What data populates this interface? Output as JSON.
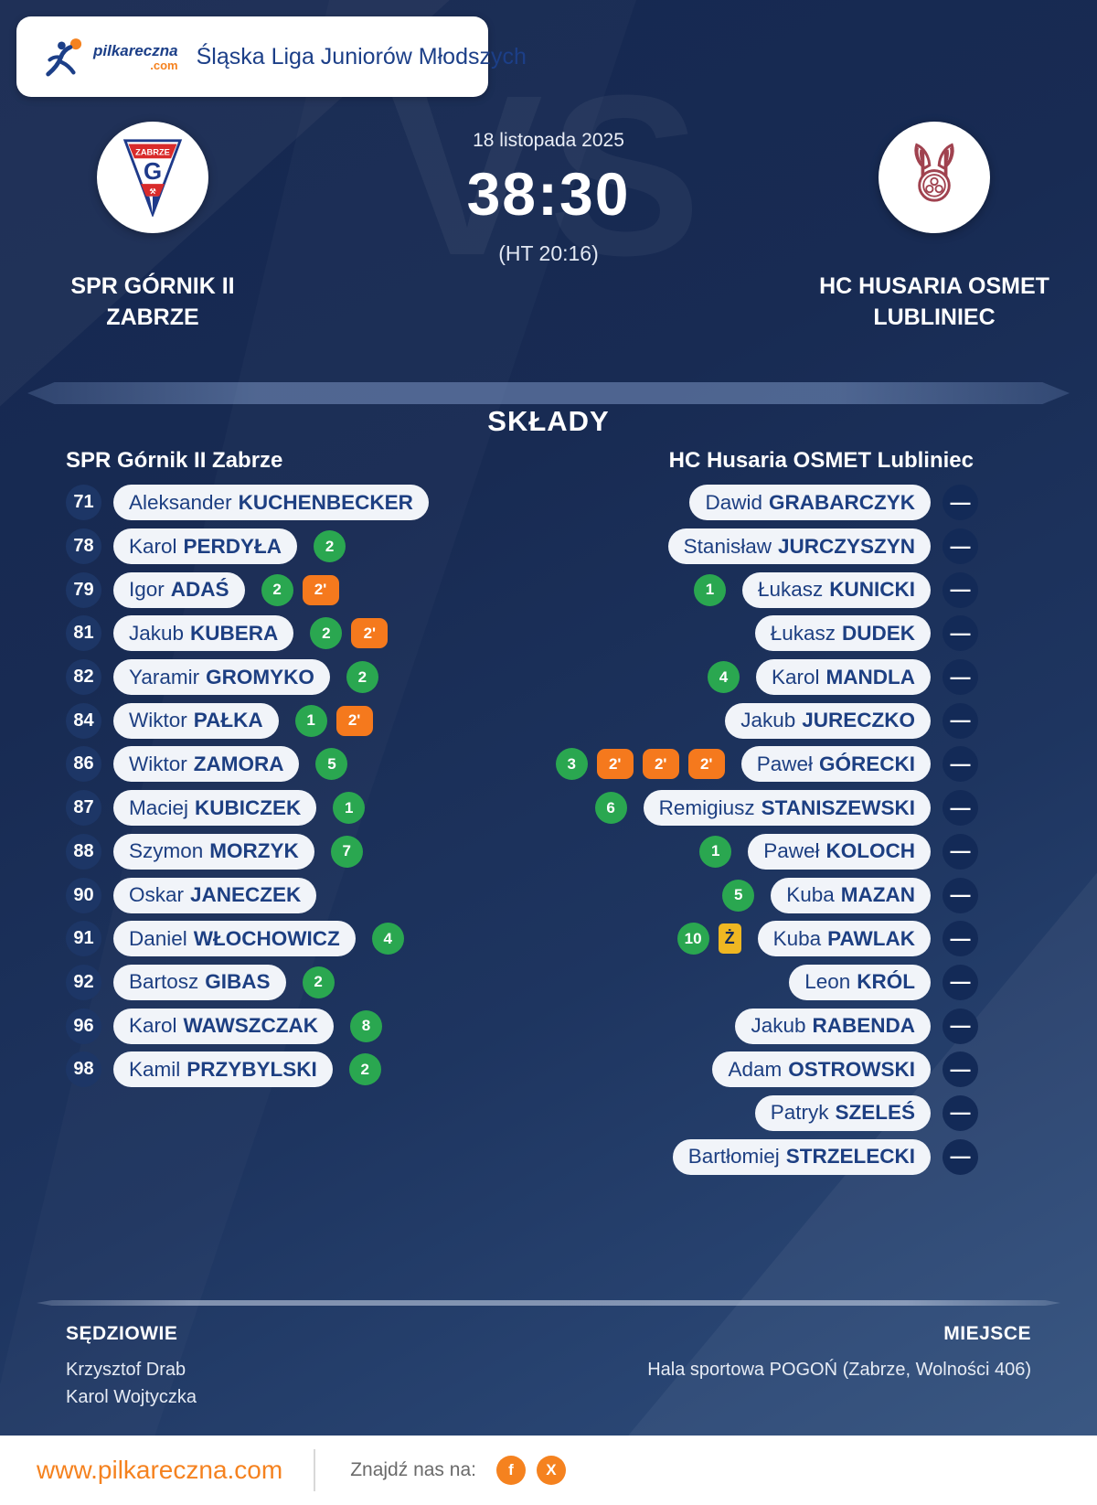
{
  "header": {
    "logo_word": "pilkareczna",
    "logo_tld": ".com",
    "league_title": "Śląska Liga Juniorów Młodszych"
  },
  "match": {
    "vs": "VS",
    "date": "18 listopada 2025",
    "score": "38:30",
    "halftime": "(HT 20:16)",
    "home": {
      "name_line1": "SPR GÓRNIK II",
      "name_line2": "ZABRZE"
    },
    "away": {
      "name_line1": "HC HUSARIA OSMET",
      "name_line2": "LUBLINIEC"
    }
  },
  "badges": {
    "two_min_label": "2'",
    "yellow_label": "Ż",
    "no_number": "—"
  },
  "lineups": {
    "title": "SKŁADY",
    "home": {
      "team_label": "SPR Górnik II Zabrze",
      "players": [
        {
          "number": "71",
          "first": "Aleksander",
          "last": "KUCHENBECKER",
          "goals": null,
          "susp_2min": 0,
          "yellow": false
        },
        {
          "number": "78",
          "first": "Karol",
          "last": "PERDYŁA",
          "goals": 2,
          "susp_2min": 0,
          "yellow": false
        },
        {
          "number": "79",
          "first": "Igor",
          "last": "ADAŚ",
          "goals": 2,
          "susp_2min": 1,
          "yellow": false
        },
        {
          "number": "81",
          "first": "Jakub",
          "last": "KUBERA",
          "goals": 2,
          "susp_2min": 1,
          "yellow": false
        },
        {
          "number": "82",
          "first": "Yaramir",
          "last": "GROMYKO",
          "goals": 2,
          "susp_2min": 0,
          "yellow": false
        },
        {
          "number": "84",
          "first": "Wiktor",
          "last": "PAŁKA",
          "goals": 1,
          "susp_2min": 1,
          "yellow": false
        },
        {
          "number": "86",
          "first": "Wiktor",
          "last": "ZAMORA",
          "goals": 5,
          "susp_2min": 0,
          "yellow": false
        },
        {
          "number": "87",
          "first": "Maciej",
          "last": "KUBICZEK",
          "goals": 1,
          "susp_2min": 0,
          "yellow": false
        },
        {
          "number": "88",
          "first": "Szymon",
          "last": "MORZYK",
          "goals": 7,
          "susp_2min": 0,
          "yellow": false
        },
        {
          "number": "90",
          "first": "Oskar",
          "last": "JANECZEK",
          "goals": null,
          "susp_2min": 0,
          "yellow": false
        },
        {
          "number": "91",
          "first": "Daniel",
          "last": "WŁOCHOWICZ",
          "goals": 4,
          "susp_2min": 0,
          "yellow": false
        },
        {
          "number": "92",
          "first": "Bartosz",
          "last": "GIBAS",
          "goals": 2,
          "susp_2min": 0,
          "yellow": false
        },
        {
          "number": "96",
          "first": "Karol",
          "last": "WAWSZCZAK",
          "goals": 8,
          "susp_2min": 0,
          "yellow": false
        },
        {
          "number": "98",
          "first": "Kamil",
          "last": "PRZYBYLSKI",
          "goals": 2,
          "susp_2min": 0,
          "yellow": false
        }
      ]
    },
    "away": {
      "team_label": "HC Husaria OSMET Lubliniec",
      "players": [
        {
          "number": null,
          "first": "Dawid",
          "last": "GRABARCZYK",
          "goals": null,
          "susp_2min": 0,
          "yellow": false
        },
        {
          "number": null,
          "first": "Stanisław",
          "last": "JURCZYSZYN",
          "goals": null,
          "susp_2min": 0,
          "yellow": false
        },
        {
          "number": null,
          "first": "Łukasz",
          "last": "KUNICKI",
          "goals": 1,
          "susp_2min": 0,
          "yellow": false
        },
        {
          "number": null,
          "first": "Łukasz",
          "last": "DUDEK",
          "goals": null,
          "susp_2min": 0,
          "yellow": false
        },
        {
          "number": null,
          "first": "Karol",
          "last": "MANDLA",
          "goals": 4,
          "susp_2min": 0,
          "yellow": false
        },
        {
          "number": null,
          "first": "Jakub",
          "last": "JURECZKO",
          "goals": null,
          "susp_2min": 0,
          "yellow": false
        },
        {
          "number": null,
          "first": "Paweł",
          "last": "GÓRECKI",
          "goals": 3,
          "susp_2min": 3,
          "yellow": false
        },
        {
          "number": null,
          "first": "Remigiusz",
          "last": "STANISZEWSKI",
          "goals": 6,
          "susp_2min": 0,
          "yellow": false
        },
        {
          "number": null,
          "first": "Paweł",
          "last": "KOLOCH",
          "goals": 1,
          "susp_2min": 0,
          "yellow": false
        },
        {
          "number": null,
          "first": "Kuba",
          "last": "MAZAN",
          "goals": 5,
          "susp_2min": 0,
          "yellow": false
        },
        {
          "number": null,
          "first": "Kuba",
          "last": "PAWLAK",
          "goals": 10,
          "susp_2min": 0,
          "yellow": true
        },
        {
          "number": null,
          "first": "Leon",
          "last": "KRÓL",
          "goals": null,
          "susp_2min": 0,
          "yellow": false
        },
        {
          "number": null,
          "first": "Jakub",
          "last": "RABENDA",
          "goals": null,
          "susp_2min": 0,
          "yellow": false
        },
        {
          "number": null,
          "first": "Adam",
          "last": "OSTROWSKI",
          "goals": null,
          "susp_2min": 0,
          "yellow": false
        },
        {
          "number": null,
          "first": "Patryk",
          "last": "SZELEŚ",
          "goals": null,
          "susp_2min": 0,
          "yellow": false
        },
        {
          "number": null,
          "first": "Bartłomiej",
          "last": "STRZELECKI",
          "goals": null,
          "susp_2min": 0,
          "yellow": false
        }
      ]
    }
  },
  "officials": {
    "referees_label": "SĘDZIOWIE",
    "referees": [
      "Krzysztof Drab",
      "Karol Wojtyczka"
    ],
    "venue_label": "MIEJSCE",
    "venue": "Hala sportowa POGOŃ (Zabrze, Wolności 406)"
  },
  "footer": {
    "site": "www.pilkareczna.com",
    "find_us_label": "Znajdź nas na:",
    "facebook_glyph": "f",
    "x_glyph": "X"
  },
  "colors": {
    "background_navy": "#17294f",
    "pill_bg": "#f1f4f9",
    "pill_text": "#1d3f82",
    "goal_green": "#2aa750",
    "suspension_orange": "#f5791d",
    "yellow_card": "#efb722",
    "brand_orange": "#f5821f",
    "footer_bg": "#ffffff"
  }
}
